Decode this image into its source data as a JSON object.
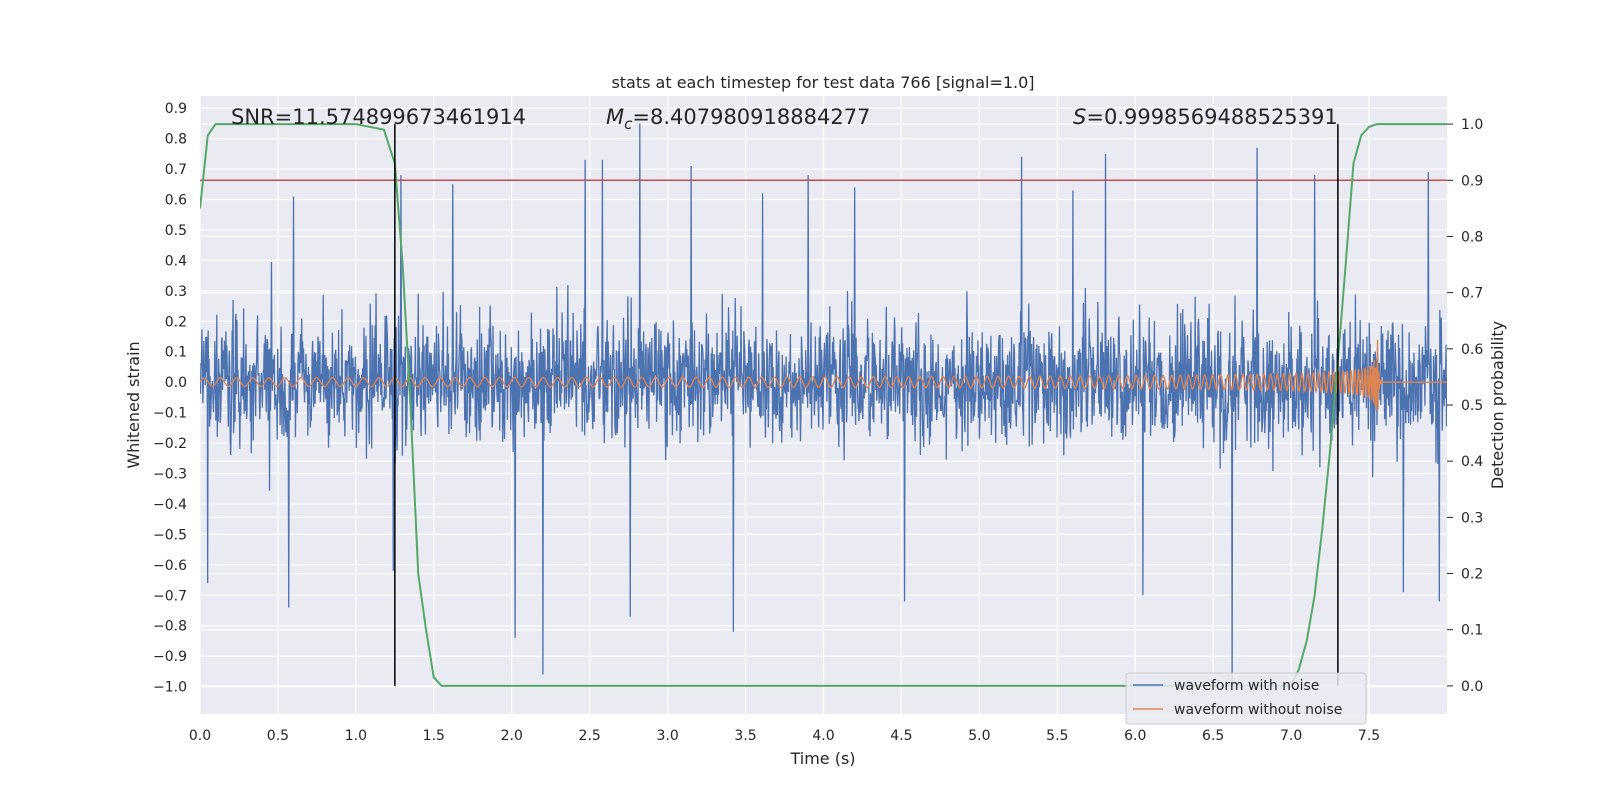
{
  "chart_data": {
    "type": "line",
    "title": "stats at each timestep for test data 766 [signal=1.0]",
    "xlabel": "Time (s)",
    "ylabel_left": "Whitened strain",
    "ylabel_right": "Detection probability",
    "xlim": [
      0.0,
      8.0
    ],
    "ylim_left": [
      -1.09,
      0.94
    ],
    "ylim_right": [
      -0.05,
      1.05
    ],
    "x_ticks": [
      "0.0",
      "0.5",
      "1.0",
      "1.5",
      "2.0",
      "2.5",
      "3.0",
      "3.5",
      "4.0",
      "4.5",
      "5.0",
      "5.5",
      "6.0",
      "6.5",
      "7.0",
      "7.5"
    ],
    "y_left_ticks": [
      "0.9",
      "0.8",
      "0.7",
      "0.6",
      "0.5",
      "0.4",
      "0.3",
      "0.2",
      "0.1",
      "0.0",
      "−0.1",
      "−0.2",
      "−0.3",
      "−0.4",
      "−0.5",
      "−0.6",
      "−0.7",
      "−0.8",
      "−0.9",
      "−1.0"
    ],
    "y_right_ticks": [
      "1.0",
      "0.9",
      "0.8",
      "0.7",
      "0.6",
      "0.5",
      "0.4",
      "0.3",
      "0.2",
      "0.1",
      "0.0"
    ],
    "grid": true,
    "legend_position": "lower-right",
    "annotations": {
      "snr": "SNR=11.574899673461914",
      "mc_symbol": "M",
      "mc_sub": "c",
      "mc_value": "=8.407980918884277",
      "s_symbol": "S",
      "s_value": "=0.9998569488525391"
    },
    "series": [
      {
        "name": "waveform with noise",
        "color": "#4c72b0",
        "axis": "left",
        "kind": "noise",
        "envelope": 0.47,
        "spikes": [
          {
            "x": 0.05,
            "y": -0.66
          },
          {
            "x": 0.57,
            "y": -0.74
          },
          {
            "x": 0.6,
            "y": 0.61
          },
          {
            "x": 1.24,
            "y": -0.62
          },
          {
            "x": 1.29,
            "y": 0.68
          },
          {
            "x": 1.62,
            "y": 0.65
          },
          {
            "x": 2.02,
            "y": -0.84
          },
          {
            "x": 2.2,
            "y": -0.96
          },
          {
            "x": 2.47,
            "y": 0.73
          },
          {
            "x": 2.58,
            "y": 0.73
          },
          {
            "x": 2.76,
            "y": -0.77
          },
          {
            "x": 2.82,
            "y": 0.85
          },
          {
            "x": 3.15,
            "y": 0.71
          },
          {
            "x": 3.42,
            "y": -0.82
          },
          {
            "x": 3.61,
            "y": 0.62
          },
          {
            "x": 3.9,
            "y": 0.68
          },
          {
            "x": 4.2,
            "y": 0.64
          },
          {
            "x": 4.52,
            "y": -0.72
          },
          {
            "x": 5.27,
            "y": 0.74
          },
          {
            "x": 5.6,
            "y": 0.63
          },
          {
            "x": 5.81,
            "y": 0.75
          },
          {
            "x": 6.05,
            "y": -0.7
          },
          {
            "x": 6.62,
            "y": -1.01
          },
          {
            "x": 6.78,
            "y": 0.77
          },
          {
            "x": 7.15,
            "y": 0.68
          },
          {
            "x": 7.72,
            "y": -0.69
          },
          {
            "x": 7.88,
            "y": 0.69
          },
          {
            "x": 7.95,
            "y": -0.72
          }
        ]
      },
      {
        "name": "waveform without noise",
        "color": "#dd8452",
        "axis": "left",
        "kind": "chirp",
        "start_amplitude": 0.014,
        "peak_amplitude": 0.35,
        "merger_time": 7.55
      },
      {
        "name": "detection probability",
        "color": "#55a868",
        "axis": "right",
        "x": [
          0.0,
          0.05,
          0.1,
          0.5,
          1.0,
          1.18,
          1.25,
          1.3,
          1.35,
          1.4,
          1.45,
          1.5,
          1.55,
          2.0,
          6.5,
          7.0,
          7.05,
          7.1,
          7.15,
          7.2,
          7.25,
          7.3,
          7.35,
          7.4,
          7.45,
          7.5,
          7.55,
          8.0
        ],
        "y": [
          0.85,
          0.98,
          1.0,
          1.0,
          1.0,
          0.99,
          0.93,
          0.75,
          0.5,
          0.2,
          0.1,
          0.015,
          0.0,
          0.0,
          0.0,
          0.0,
          0.03,
          0.08,
          0.16,
          0.28,
          0.42,
          0.58,
          0.75,
          0.93,
          0.98,
          0.995,
          1.0,
          1.0
        ]
      }
    ],
    "threshold_line": {
      "y": 0.9,
      "axis": "right",
      "color": "#c44e52"
    },
    "vertical_lines": [
      {
        "x": 1.25,
        "color": "#000000"
      },
      {
        "x": 7.3,
        "color": "#000000"
      }
    ]
  }
}
